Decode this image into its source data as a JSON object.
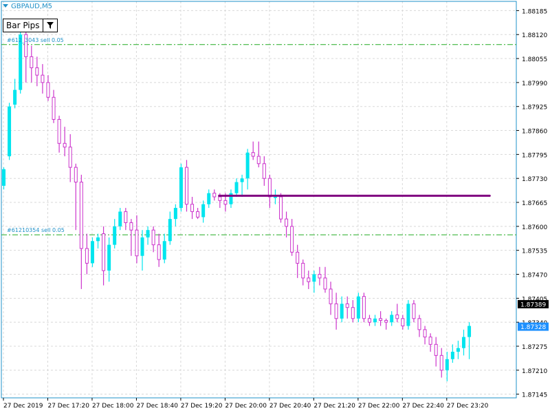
{
  "symbol": "GBPAUD,M5",
  "button": {
    "label": "Bar Pips"
  },
  "orders": [
    {
      "label": "#612_3043 sell 0.05",
      "price": 1.88093
    },
    {
      "label": "#61210354 sell 0.05",
      "price": 1.87577
    }
  ],
  "colors": {
    "bull": "#00e5ee",
    "bear": "#cc33cc",
    "grid": "#d8d8d8",
    "axis": "#1e90c8",
    "order_line": "#22aa22",
    "level_line": "#800080",
    "price_label": "#1e90c8"
  },
  "chart_data": {
    "type": "candlestick",
    "ylim": [
      1.87135,
      1.8821
    ],
    "y_ticks": [
      1.87145,
      1.8721,
      1.87275,
      1.8734,
      1.87405,
      1.8747,
      1.87535,
      1.876,
      1.87665,
      1.8773,
      1.87795,
      1.8786,
      1.87925,
      1.8799,
      1.88055,
      1.8812,
      1.88185
    ],
    "x_ticks": [
      {
        "label": "27 Dec 2019",
        "bar": 0
      },
      {
        "label": "27 Dec 17:20",
        "bar": 8
      },
      {
        "label": "27 Dec 18:00",
        "bar": 16
      },
      {
        "label": "27 Dec 18:40",
        "bar": 24
      },
      {
        "label": "27 Dec 19:20",
        "bar": 32
      },
      {
        "label": "27 Dec 20:00",
        "bar": 40
      },
      {
        "label": "27 Dec 20:40",
        "bar": 48
      },
      {
        "label": "27 Dec 21:20",
        "bar": 56
      },
      {
        "label": "27 Dec 22:00",
        "bar": 64
      },
      {
        "label": "27 Dec 22:40",
        "bar": 72
      },
      {
        "label": "27 Dec 23:20",
        "bar": 80
      }
    ],
    "current_prices": [
      {
        "value": "1.87389",
        "style": "black"
      },
      {
        "value": "1.87328",
        "style": "blue"
      }
    ],
    "level_line": {
      "price": 1.87683,
      "from_bar": 39,
      "to_bar": 88
    },
    "candles": [
      {
        "o": 1.8771,
        "h": 1.8776,
        "l": 1.877,
        "c": 1.87755
      },
      {
        "o": 1.8779,
        "h": 1.87935,
        "l": 1.8778,
        "c": 1.87925
      },
      {
        "o": 1.8793,
        "h": 1.88,
        "l": 1.8792,
        "c": 1.8797
      },
      {
        "o": 1.8797,
        "h": 1.8814,
        "l": 1.8796,
        "c": 1.8812
      },
      {
        "o": 1.8812,
        "h": 1.88135,
        "l": 1.8799,
        "c": 1.8806
      },
      {
        "o": 1.8806,
        "h": 1.8809,
        "l": 1.8799,
        "c": 1.8803
      },
      {
        "o": 1.8803,
        "h": 1.8806,
        "l": 1.8798,
        "c": 1.8801
      },
      {
        "o": 1.8801,
        "h": 1.8804,
        "l": 1.8796,
        "c": 1.8799
      },
      {
        "o": 1.8799,
        "h": 1.8801,
        "l": 1.8794,
        "c": 1.8795
      },
      {
        "o": 1.8795,
        "h": 1.8797,
        "l": 1.8788,
        "c": 1.8789
      },
      {
        "o": 1.8789,
        "h": 1.879,
        "l": 1.878,
        "c": 1.87825
      },
      {
        "o": 1.87825,
        "h": 1.8787,
        "l": 1.8779,
        "c": 1.87815
      },
      {
        "o": 1.87815,
        "h": 1.8785,
        "l": 1.8772,
        "c": 1.8776
      },
      {
        "o": 1.8776,
        "h": 1.8777,
        "l": 1.8759,
        "c": 1.8772
      },
      {
        "o": 1.8772,
        "h": 1.8774,
        "l": 1.8743,
        "c": 1.8754
      },
      {
        "o": 1.8754,
        "h": 1.8758,
        "l": 1.8747,
        "c": 1.875
      },
      {
        "o": 1.875,
        "h": 1.8757,
        "l": 1.8749,
        "c": 1.8756
      },
      {
        "o": 1.8756,
        "h": 1.8758,
        "l": 1.8754,
        "c": 1.8757
      },
      {
        "o": 1.8758,
        "h": 1.876,
        "l": 1.8744,
        "c": 1.8748
      },
      {
        "o": 1.8748,
        "h": 1.8757,
        "l": 1.8745,
        "c": 1.8755
      },
      {
        "o": 1.8755,
        "h": 1.8762,
        "l": 1.8754,
        "c": 1.876
      },
      {
        "o": 1.876,
        "h": 1.8765,
        "l": 1.8759,
        "c": 1.8764
      },
      {
        "o": 1.8764,
        "h": 1.8765,
        "l": 1.8759,
        "c": 1.8761
      },
      {
        "o": 1.8761,
        "h": 1.8762,
        "l": 1.8752,
        "c": 1.8759
      },
      {
        "o": 1.8759,
        "h": 1.8763,
        "l": 1.875,
        "c": 1.8752
      },
      {
        "o": 1.8752,
        "h": 1.8759,
        "l": 1.8748,
        "c": 1.8757
      },
      {
        "o": 1.8757,
        "h": 1.876,
        "l": 1.8755,
        "c": 1.8759
      },
      {
        "o": 1.8759,
        "h": 1.876,
        "l": 1.8753,
        "c": 1.8755
      },
      {
        "o": 1.8755,
        "h": 1.8758,
        "l": 1.8749,
        "c": 1.8751
      },
      {
        "o": 1.8751,
        "h": 1.8758,
        "l": 1.875,
        "c": 1.8756
      },
      {
        "o": 1.8756,
        "h": 1.8764,
        "l": 1.8755,
        "c": 1.8762
      },
      {
        "o": 1.8762,
        "h": 1.8766,
        "l": 1.876,
        "c": 1.8765
      },
      {
        "o": 1.8765,
        "h": 1.8777,
        "l": 1.8764,
        "c": 1.8776
      },
      {
        "o": 1.8776,
        "h": 1.8778,
        "l": 1.8764,
        "c": 1.8766
      },
      {
        "o": 1.8766,
        "h": 1.8768,
        "l": 1.8762,
        "c": 1.8764
      },
      {
        "o": 1.8764,
        "h": 1.8765,
        "l": 1.8762,
        "c": 1.87625
      },
      {
        "o": 1.87625,
        "h": 1.8767,
        "l": 1.8761,
        "c": 1.8766
      },
      {
        "o": 1.8766,
        "h": 1.877,
        "l": 1.8765,
        "c": 1.8769
      },
      {
        "o": 1.8769,
        "h": 1.877,
        "l": 1.8767,
        "c": 1.8768
      },
      {
        "o": 1.8768,
        "h": 1.8769,
        "l": 1.8765,
        "c": 1.8767
      },
      {
        "o": 1.8767,
        "h": 1.8769,
        "l": 1.8764,
        "c": 1.8766
      },
      {
        "o": 1.8766,
        "h": 1.877,
        "l": 1.8765,
        "c": 1.8769
      },
      {
        "o": 1.8769,
        "h": 1.8773,
        "l": 1.8768,
        "c": 1.8772
      },
      {
        "o": 1.8772,
        "h": 1.8774,
        "l": 1.8768,
        "c": 1.8773
      },
      {
        "o": 1.8773,
        "h": 1.8781,
        "l": 1.877,
        "c": 1.878
      },
      {
        "o": 1.878,
        "h": 1.8783,
        "l": 1.8778,
        "c": 1.8779
      },
      {
        "o": 1.8779,
        "h": 1.8783,
        "l": 1.8776,
        "c": 1.8777
      },
      {
        "o": 1.8777,
        "h": 1.8779,
        "l": 1.8771,
        "c": 1.8773
      },
      {
        "o": 1.8773,
        "h": 1.8774,
        "l": 1.8765,
        "c": 1.8768
      },
      {
        "o": 1.8768,
        "h": 1.877,
        "l": 1.8766,
        "c": 1.8768
      },
      {
        "o": 1.8768,
        "h": 1.8769,
        "l": 1.8761,
        "c": 1.8762
      },
      {
        "o": 1.8762,
        "h": 1.8764,
        "l": 1.8757,
        "c": 1.876
      },
      {
        "o": 1.876,
        "h": 1.8762,
        "l": 1.8752,
        "c": 1.8753
      },
      {
        "o": 1.8753,
        "h": 1.8755,
        "l": 1.8746,
        "c": 1.875
      },
      {
        "o": 1.875,
        "h": 1.8751,
        "l": 1.8744,
        "c": 1.8746
      },
      {
        "o": 1.8746,
        "h": 1.8748,
        "l": 1.8743,
        "c": 1.8745
      },
      {
        "o": 1.8745,
        "h": 1.8748,
        "l": 1.8742,
        "c": 1.8747
      },
      {
        "o": 1.8747,
        "h": 1.8749,
        "l": 1.8744,
        "c": 1.8746
      },
      {
        "o": 1.8746,
        "h": 1.8749,
        "l": 1.8742,
        "c": 1.8743
      },
      {
        "o": 1.8743,
        "h": 1.8745,
        "l": 1.8736,
        "c": 1.8739
      },
      {
        "o": 1.8739,
        "h": 1.8742,
        "l": 1.8732,
        "c": 1.8735
      },
      {
        "o": 1.8735,
        "h": 1.8741,
        "l": 1.8734,
        "c": 1.8739
      },
      {
        "o": 1.8739,
        "h": 1.8741,
        "l": 1.8735,
        "c": 1.8738
      },
      {
        "o": 1.8738,
        "h": 1.874,
        "l": 1.8734,
        "c": 1.8735
      },
      {
        "o": 1.8735,
        "h": 1.8742,
        "l": 1.8734,
        "c": 1.8741
      },
      {
        "o": 1.8741,
        "h": 1.8742,
        "l": 1.8734,
        "c": 1.8735
      },
      {
        "o": 1.8735,
        "h": 1.8736,
        "l": 1.8733,
        "c": 1.8734
      },
      {
        "o": 1.8734,
        "h": 1.8736,
        "l": 1.8733,
        "c": 1.8735
      },
      {
        "o": 1.8735,
        "h": 1.8737,
        "l": 1.8733,
        "c": 1.87345
      },
      {
        "o": 1.87345,
        "h": 1.8735,
        "l": 1.8732,
        "c": 1.8734
      },
      {
        "o": 1.8734,
        "h": 1.8737,
        "l": 1.8733,
        "c": 1.8736
      },
      {
        "o": 1.8736,
        "h": 1.8739,
        "l": 1.8734,
        "c": 1.8735
      },
      {
        "o": 1.8735,
        "h": 1.8736,
        "l": 1.8732,
        "c": 1.8733
      },
      {
        "o": 1.8733,
        "h": 1.874,
        "l": 1.8732,
        "c": 1.8739
      },
      {
        "o": 1.8739,
        "h": 1.874,
        "l": 1.8734,
        "c": 1.8735
      },
      {
        "o": 1.8735,
        "h": 1.8736,
        "l": 1.873,
        "c": 1.8732
      },
      {
        "o": 1.8732,
        "h": 1.8733,
        "l": 1.8728,
        "c": 1.873
      },
      {
        "o": 1.873,
        "h": 1.8731,
        "l": 1.8726,
        "c": 1.8728
      },
      {
        "o": 1.8728,
        "h": 1.873,
        "l": 1.8722,
        "c": 1.8725
      },
      {
        "o": 1.8725,
        "h": 1.8727,
        "l": 1.8719,
        "c": 1.8721
      },
      {
        "o": 1.8721,
        "h": 1.8726,
        "l": 1.8718,
        "c": 1.8724
      },
      {
        "o": 1.8724,
        "h": 1.8728,
        "l": 1.8723,
        "c": 1.8726
      },
      {
        "o": 1.8726,
        "h": 1.8729,
        "l": 1.8724,
        "c": 1.8727
      },
      {
        "o": 1.8727,
        "h": 1.8732,
        "l": 1.8725,
        "c": 1.873
      },
      {
        "o": 1.873,
        "h": 1.8734,
        "l": 1.8724,
        "c": 1.8733
      }
    ]
  }
}
